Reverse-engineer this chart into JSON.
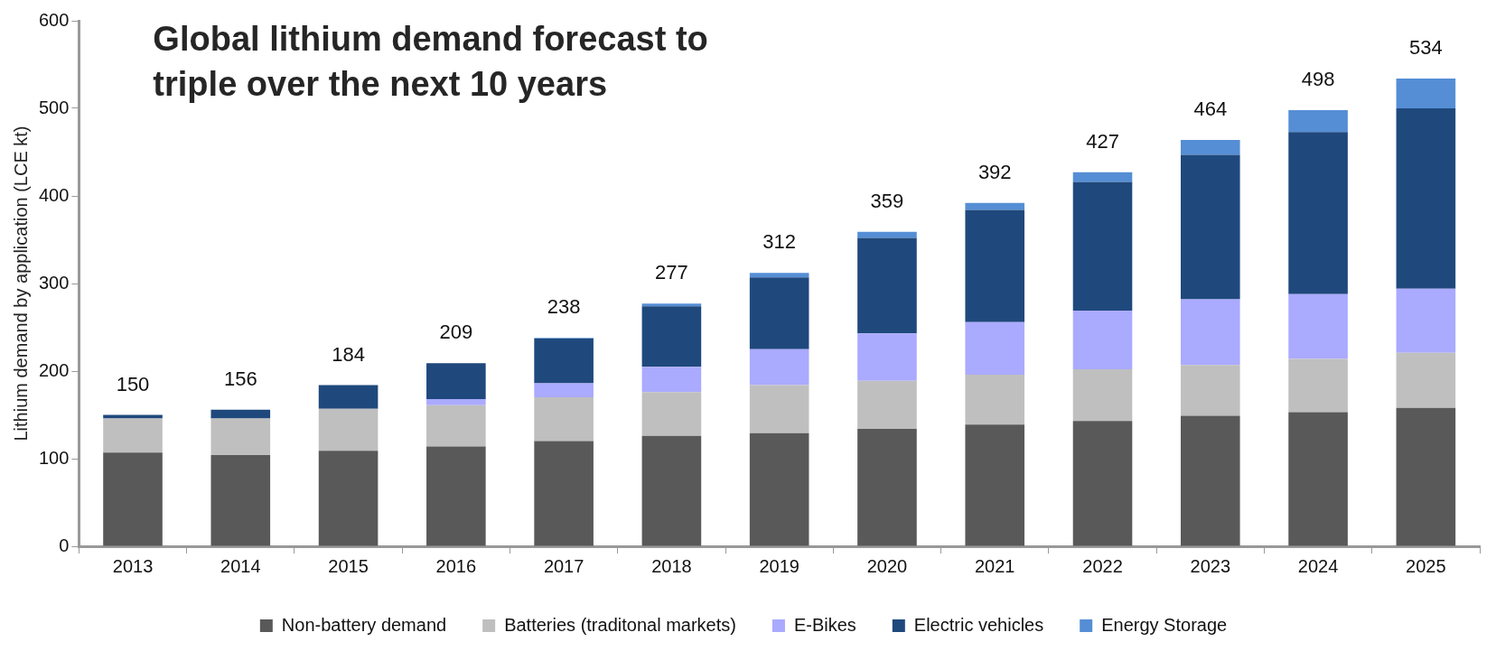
{
  "chart_data": {
    "type": "bar",
    "stacked": true,
    "title": "Global lithium demand forecast to\ntriple over the next 10 years",
    "ylabel": "Lithium demand by application (LCE kt)",
    "categories": [
      "2013",
      "2014",
      "2015",
      "2016",
      "2017",
      "2018",
      "2019",
      "2020",
      "2021",
      "2022",
      "2023",
      "2024",
      "2025"
    ],
    "series": [
      {
        "name": "Non-battery demand",
        "color": "#595959",
        "values": [
          107,
          104,
          109,
          114,
          120,
          126,
          129,
          134,
          139,
          143,
          149,
          153,
          158
        ]
      },
      {
        "name": "Batteries (traditonal markets)",
        "color": "#bfbfbf",
        "values": [
          39,
          42,
          48,
          47,
          50,
          50,
          55,
          55,
          57,
          59,
          58,
          61,
          63
        ]
      },
      {
        "name": "E-Bikes",
        "color": "#aaaaff",
        "values": [
          0,
          0,
          0,
          7,
          16,
          29,
          41,
          54,
          60,
          67,
          75,
          74,
          73
        ]
      },
      {
        "name": "Electric vehicles",
        "color": "#1f497d",
        "values": [
          4,
          10,
          27,
          41,
          51,
          69,
          82,
          109,
          128,
          147,
          165,
          185,
          206
        ]
      },
      {
        "name": "Energy Storage",
        "color": "#558ed5",
        "values": [
          0,
          0,
          0,
          0,
          1,
          3,
          5,
          7,
          8,
          11,
          17,
          25,
          34
        ]
      }
    ],
    "totals": [
      "150",
      "156",
      "184",
      "209",
      "238",
      "277",
      "312",
      "359",
      "392",
      "427",
      "464",
      "498",
      "534"
    ],
    "ylim": [
      0,
      600
    ],
    "yticks": [
      0,
      100,
      200,
      300,
      400,
      500,
      600
    ],
    "grid": false,
    "legend": "bottom"
  }
}
